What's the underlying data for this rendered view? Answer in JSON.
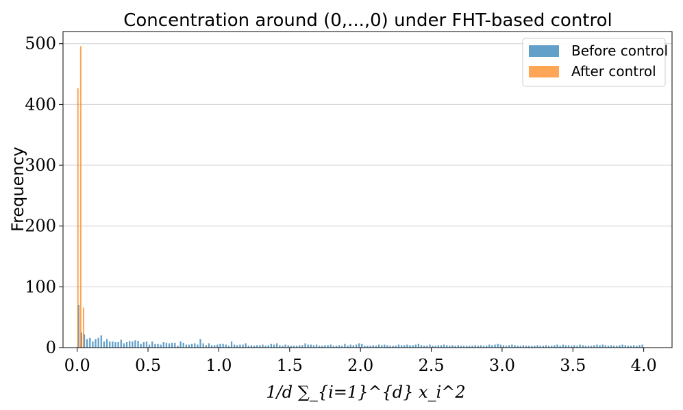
{
  "chart_data": {
    "type": "bar",
    "title": "Concentration around (0,...,0) under FHT-based control",
    "xlabel": "1/d ∑_{i=1}^{d} x_i^2",
    "ylabel": "Frequency",
    "xlim": [
      -0.1,
      4.2
    ],
    "ylim": [
      0,
      520
    ],
    "xticks": [
      "0.0",
      "0.5",
      "1.0",
      "1.5",
      "2.0",
      "2.5",
      "3.0",
      "3.5",
      "4.0"
    ],
    "yticks": [
      "0",
      "100",
      "200",
      "300",
      "400",
      "500"
    ],
    "grid": "horizontal",
    "legend_position": "upper right",
    "colors": {
      "before": "#1f77b4",
      "after": "#ff7f0e"
    },
    "series": [
      {
        "name": "Before control",
        "x": [
          0.0,
          0.02,
          0.04,
          0.06,
          0.08,
          0.1,
          0.12,
          0.14,
          0.16,
          0.18,
          0.2,
          0.22,
          0.24,
          0.26,
          0.28,
          0.3,
          0.32,
          0.34,
          0.36,
          0.38,
          0.4,
          0.42,
          0.44,
          0.46,
          0.48,
          0.5,
          0.52,
          0.54,
          0.56,
          0.58,
          0.6,
          0.62,
          0.64,
          0.66,
          0.68,
          0.7,
          0.72,
          0.74,
          0.76,
          0.78,
          0.8,
          0.82,
          0.84,
          0.86,
          0.88,
          0.9,
          0.92,
          0.94,
          0.96,
          0.98,
          1.0,
          1.02,
          1.04,
          1.06,
          1.08,
          1.1,
          1.12,
          1.14,
          1.16,
          1.18,
          1.2,
          1.22,
          1.24,
          1.26,
          1.28,
          1.3,
          1.32,
          1.34,
          1.36,
          1.38,
          1.4,
          1.42,
          1.44,
          1.46,
          1.48,
          1.5,
          1.52,
          1.54,
          1.56,
          1.58,
          1.6,
          1.62,
          1.64,
          1.66,
          1.68,
          1.7,
          1.72,
          1.74,
          1.76,
          1.78,
          1.8,
          1.82,
          1.84,
          1.86,
          1.88,
          1.9,
          1.92,
          1.94,
          1.96,
          1.98,
          2.0,
          2.02,
          2.04,
          2.06,
          2.08,
          2.1,
          2.12,
          2.14,
          2.16,
          2.18,
          2.2,
          2.22,
          2.24,
          2.26,
          2.28,
          2.3,
          2.32,
          2.34,
          2.36,
          2.38,
          2.4,
          2.42,
          2.44,
          2.46,
          2.48,
          2.5,
          2.52,
          2.54,
          2.56,
          2.58,
          2.6,
          2.62,
          2.64,
          2.66,
          2.68,
          2.7,
          2.72,
          2.74,
          2.76,
          2.78,
          2.8,
          2.82,
          2.84,
          2.86,
          2.88,
          2.9,
          2.92,
          2.94,
          2.96,
          2.98,
          3.0,
          3.02,
          3.04,
          3.06,
          3.08,
          3.1,
          3.12,
          3.14,
          3.16,
          3.18,
          3.2,
          3.22,
          3.24,
          3.26,
          3.28,
          3.3,
          3.32,
          3.34,
          3.36,
          3.38,
          3.4,
          3.42,
          3.44,
          3.46,
          3.48,
          3.5,
          3.52,
          3.54,
          3.56,
          3.58,
          3.6,
          3.62,
          3.64,
          3.66,
          3.68,
          3.7,
          3.72,
          3.74,
          3.76,
          3.78,
          3.8,
          3.82,
          3.84,
          3.86,
          3.88,
          3.9,
          3.92,
          3.94,
          3.96,
          3.98
        ],
        "values": [
          70,
          25,
          22,
          14,
          16,
          10,
          14,
          16,
          20,
          10,
          14,
          10,
          10,
          9,
          9,
          13,
          7,
          9,
          11,
          10,
          12,
          11,
          6,
          9,
          10,
          5,
          10,
          6,
          6,
          5,
          9,
          8,
          7,
          8,
          8,
          3,
          10,
          8,
          5,
          5,
          6,
          7,
          5,
          14,
          7,
          4,
          7,
          4,
          4,
          5,
          6,
          6,
          5,
          3,
          10,
          5,
          4,
          5,
          5,
          7,
          3,
          4,
          3,
          4,
          4,
          5,
          3,
          4,
          6,
          5,
          7,
          4,
          3,
          5,
          4,
          3,
          3,
          3,
          4,
          4,
          7,
          5,
          5,
          4,
          5,
          3,
          3,
          4,
          4,
          5,
          3,
          3,
          4,
          3,
          6,
          3,
          5,
          4,
          5,
          7,
          6,
          3,
          3,
          3,
          4,
          3,
          5,
          4,
          5,
          4,
          3,
          3,
          3,
          5,
          4,
          4,
          5,
          4,
          4,
          5,
          6,
          4,
          3,
          3,
          5,
          3,
          3,
          4,
          4,
          5,
          4,
          3,
          4,
          3,
          4,
          3,
          3,
          3,
          3,
          3,
          4,
          3,
          4,
          3,
          3,
          5,
          4,
          5,
          6,
          5,
          4,
          3,
          4,
          5,
          4,
          3,
          3,
          4,
          3,
          3,
          3,
          3,
          4,
          3,
          3,
          4,
          3,
          3,
          4,
          5,
          3,
          5,
          4,
          4,
          3,
          4,
          3,
          5,
          4,
          3,
          3,
          3,
          4,
          5,
          4,
          5,
          4,
          3,
          4,
          3,
          3,
          4,
          5,
          4,
          3,
          3,
          4,
          3,
          4,
          5
        ]
      },
      {
        "name": "After control",
        "x": [
          0.005,
          0.025,
          0.045
        ],
        "values": [
          427,
          496,
          66
        ]
      }
    ]
  }
}
